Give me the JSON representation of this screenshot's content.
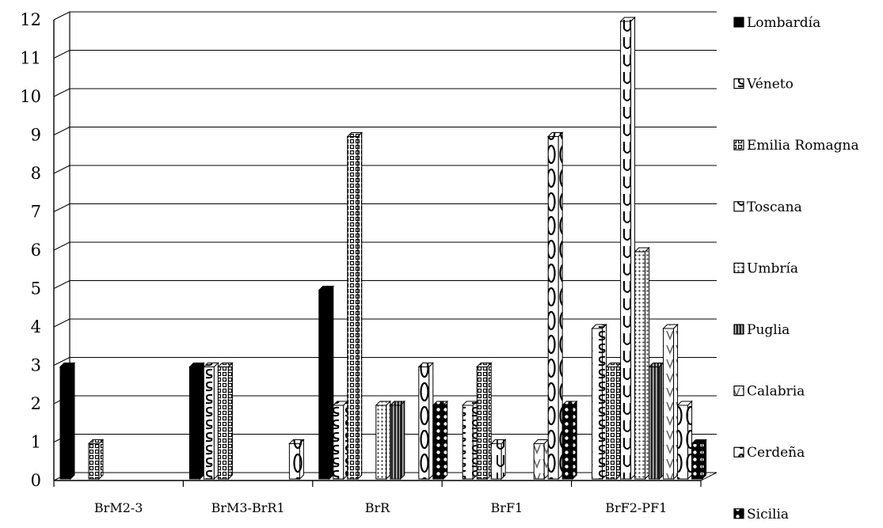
{
  "chart_data": {
    "type": "bar",
    "categories": [
      "BrM2-3",
      "BrM3-BrR1",
      "BrR",
      "BrF1",
      "BrF2-PF1"
    ],
    "series": [
      {
        "name": "Lombardía",
        "values": [
          3,
          3,
          5,
          0,
          0
        ],
        "color": "#000000",
        "pattern": "solid"
      },
      {
        "name": "Véneto",
        "values": [
          0,
          3,
          2,
          2,
          4
        ],
        "color": "#ffffff",
        "pattern": "s-shapes"
      },
      {
        "name": "Emilia Romagna",
        "values": [
          1,
          3,
          9,
          3,
          3
        ],
        "color": "#ffffff",
        "pattern": "grid"
      },
      {
        "name": "Toscana",
        "values": [
          0,
          0,
          0,
          1,
          12
        ],
        "color": "#ffffff",
        "pattern": "u-shapes"
      },
      {
        "name": "Umbría",
        "values": [
          0,
          0,
          2,
          0,
          6
        ],
        "color": "#ffffff",
        "pattern": "dots"
      },
      {
        "name": "Puglia",
        "values": [
          0,
          0,
          2,
          0,
          3
        ],
        "color": "#555555",
        "pattern": "vertical-stripes"
      },
      {
        "name": "Calabria",
        "values": [
          0,
          0,
          0,
          1,
          4
        ],
        "color": "#ffffff",
        "pattern": "v-shapes"
      },
      {
        "name": "Cerdeña",
        "values": [
          0,
          1,
          3,
          9,
          2
        ],
        "color": "#ffffff",
        "pattern": "o-shapes"
      },
      {
        "name": "Sicilia",
        "values": [
          0,
          0,
          2,
          2,
          1
        ],
        "color": "#000000",
        "pattern": "white-dots"
      }
    ],
    "y_ticks": [
      "0",
      "1",
      "2",
      "3",
      "4",
      "5",
      "6",
      "7",
      "8",
      "9",
      "10",
      "11",
      "12"
    ],
    "ylim": [
      0,
      12
    ],
    "grid": true,
    "legend_position": "right",
    "style": "3d-column"
  }
}
